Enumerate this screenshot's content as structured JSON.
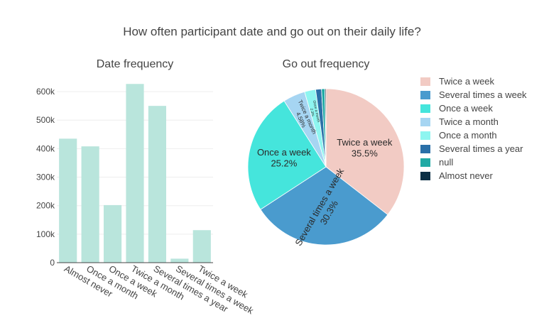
{
  "title": "How often participant date and go out on their daily life?",
  "chart_data": [
    {
      "type": "bar",
      "title": "Date frequency",
      "categories": [
        "Almost never",
        "Once a month",
        "Once a week",
        "Twice a month",
        "Several times a year",
        "Several times a week",
        "Twice a week"
      ],
      "values": [
        435000,
        408000,
        202000,
        627000,
        550000,
        14000,
        114000
      ],
      "ylim": [
        0,
        660000
      ],
      "yticks": [
        0,
        100000,
        200000,
        300000,
        400000,
        500000,
        600000
      ],
      "ytick_labels": [
        "0",
        "100k",
        "200k",
        "300k",
        "400k",
        "500k",
        "600k"
      ],
      "grid": true,
      "color": "#b9e5dc"
    },
    {
      "type": "pie",
      "title": "Go out frequency",
      "legend_position": "right",
      "slices": [
        {
          "label": "Twice a week",
          "value": 35.5,
          "text": "Twice a week\n35.5%",
          "color": "#f2cbc4"
        },
        {
          "label": "Several times a week",
          "value": 30.3,
          "text": "Several times a week\n30.3%",
          "color": "#4a9bce"
        },
        {
          "label": "Once a week",
          "value": 25.2,
          "text": "Once a week\n25.2%",
          "color": "#45e5dc"
        },
        {
          "label": "Twice a month",
          "value": 4.58,
          "text": "Twice a month\n4.58%",
          "color": "#a6d5f2"
        },
        {
          "label": "Once a month",
          "value": 2.3,
          "text": "Once a month\n2.3%",
          "color": "#8ef5f0"
        },
        {
          "label": "Several times a year",
          "value": 1.2,
          "text": "",
          "color": "#2a70a8"
        },
        {
          "label": "null",
          "value": 0.7,
          "text": "",
          "color": "#21aaa5"
        },
        {
          "label": "Almost never",
          "value": 0.22,
          "text": "",
          "color": "#0c2f45"
        }
      ]
    }
  ]
}
